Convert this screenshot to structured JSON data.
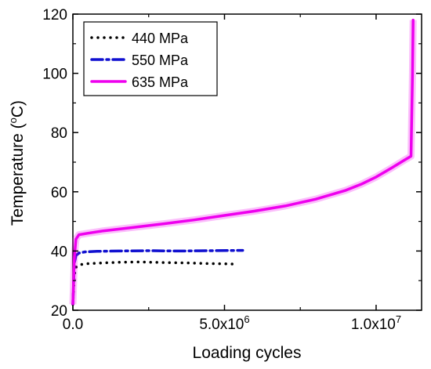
{
  "chart_data": {
    "type": "line",
    "xlabel": "Loading cycles",
    "ylabel_main": "Temperature (",
    "ylabel_sup": "o",
    "ylabel_end": "C)",
    "xlim": [
      0,
      11500000
    ],
    "ylim": [
      20,
      120
    ],
    "x_ticks": [
      0,
      5000000,
      10000000
    ],
    "x_tick_labels": [
      {
        "base": "0.0",
        "sup": ""
      },
      {
        "base": "5.0x10",
        "sup": "6"
      },
      {
        "base": "1.0x10",
        "sup": "7"
      }
    ],
    "y_ticks": [
      20,
      40,
      60,
      80,
      100,
      120
    ],
    "y_tick_labels": [
      "20",
      "40",
      "60",
      "80",
      "100",
      "120"
    ],
    "grid": false,
    "legend_position": "top-left",
    "series": [
      {
        "name": "440 MPa",
        "color": "#000000",
        "style": "dotted",
        "x": [
          0,
          50000,
          100000,
          200000,
          400000,
          800000,
          1500000,
          2200000,
          3000000,
          3700000,
          4400000,
          5300000
        ],
        "y": [
          22,
          32,
          34.5,
          35.3,
          35.7,
          35.9,
          36.2,
          36.3,
          36.1,
          36.0,
          35.8,
          35.6
        ]
      },
      {
        "name": "550 MPa",
        "color": "#1010d0",
        "style": "dashdot",
        "x": [
          0,
          50000,
          100000,
          200000,
          400000,
          800000,
          1500000,
          2500000,
          3500000,
          4500000,
          5600000
        ],
        "y": [
          22,
          36,
          38.5,
          39.3,
          39.7,
          39.9,
          40.0,
          40.1,
          40.0,
          40.1,
          40.2
        ]
      },
      {
        "name": "635 MPa",
        "color": "#ee00ee",
        "style": "solid",
        "x": [
          0,
          50000,
          100000,
          200000,
          500000,
          1000000,
          2000000,
          3000000,
          4000000,
          5000000,
          6000000,
          7000000,
          8000000,
          9000000,
          9500000,
          10000000,
          10500000,
          10900000,
          11150000,
          11200000,
          11220000
        ],
        "y": [
          22,
          38,
          44,
          45.5,
          46,
          46.8,
          48,
          49.2,
          50.5,
          52,
          53.5,
          55.2,
          57.5,
          60.5,
          62.5,
          65,
          68,
          70.5,
          72,
          100,
          118
        ]
      }
    ]
  }
}
